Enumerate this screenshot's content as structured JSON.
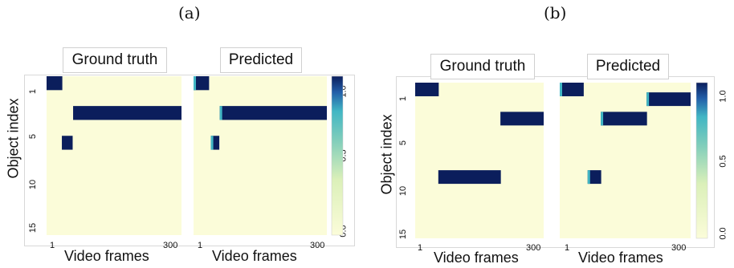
{
  "chart_data": [
    {
      "type": "heatmap",
      "panel_label": "(a)",
      "ylabel": "Object index",
      "y_ticks": [
        "1",
        "5",
        "10",
        "15"
      ],
      "colorbar_ticks": [
        "0.0",
        "0.5",
        "1.0"
      ],
      "value_range": [
        0,
        1
      ],
      "colors": {
        "low": "#fbfcd9",
        "high": "#0b1e5c",
        "mid": "#41b6c4"
      },
      "subplots": [
        {
          "title": "Ground truth",
          "xlabel": "Video frames",
          "x_ticks": [
            "1",
            "300"
          ],
          "n_objects": 16,
          "n_frames": 300,
          "tracks": [
            {
              "object": 1,
              "start": 1,
              "end": 35,
              "value": 1.0
            },
            {
              "object": 4,
              "start": 60,
              "end": 300,
              "value": 1.0
            },
            {
              "object": 7,
              "start": 35,
              "end": 58,
              "value": 1.0
            }
          ]
        },
        {
          "title": "Predicted",
          "xlabel": "Video frames",
          "x_ticks": [
            "1",
            "300"
          ],
          "n_objects": 16,
          "n_frames": 300,
          "tracks": [
            {
              "object": 1,
              "start": 1,
              "end": 35,
              "value": 1.0
            },
            {
              "object": 4,
              "start": 60,
              "end": 300,
              "value": 1.0
            },
            {
              "object": 7,
              "start": 40,
              "end": 58,
              "value": 1.0
            }
          ]
        }
      ]
    },
    {
      "type": "heatmap",
      "panel_label": "(b)",
      "ylabel": "Object index",
      "y_ticks": [
        "1",
        "5",
        "10",
        "15"
      ],
      "colorbar_ticks": [
        "0.0",
        "0.5",
        "1.0"
      ],
      "value_range": [
        0,
        1
      ],
      "colors": {
        "low": "#fbfcd9",
        "high": "#0b1e5c",
        "mid": "#41b6c4"
      },
      "subplots": [
        {
          "title": "Ground truth",
          "xlabel": "Video frames",
          "x_ticks": [
            "1",
            "300"
          ],
          "n_objects": 16,
          "n_frames": 300,
          "tracks": [
            {
              "object": 1,
              "start": 1,
              "end": 55,
              "value": 1.0
            },
            {
              "object": 4,
              "start": 200,
              "end": 300,
              "value": 1.0
            },
            {
              "object": 10,
              "start": 55,
              "end": 200,
              "value": 1.0
            }
          ]
        },
        {
          "title": "Predicted",
          "xlabel": "Video frames",
          "x_ticks": [
            "1",
            "300"
          ],
          "n_objects": 16,
          "n_frames": 300,
          "tracks": [
            {
              "object": 1,
              "start": 1,
              "end": 55,
              "value": 1.0
            },
            {
              "object": 2,
              "start": 200,
              "end": 300,
              "value": 1.0
            },
            {
              "object": 4,
              "start": 95,
              "end": 200,
              "value": 1.0
            },
            {
              "object": 10,
              "start": 65,
              "end": 95,
              "value": 1.0
            }
          ]
        }
      ]
    }
  ]
}
